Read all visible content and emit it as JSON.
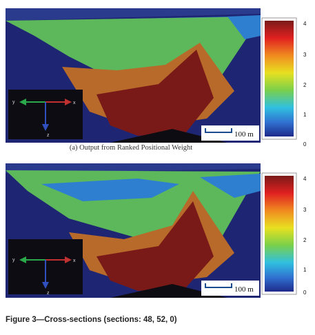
{
  "panels": [
    {
      "id": "a",
      "scale_bar_label": "100 m",
      "colorbar_ticks": [
        "4",
        "3",
        "2",
        "1",
        "0"
      ],
      "axis_labels": {
        "x_left": "y",
        "x_right": "x",
        "down": "z"
      },
      "caption": "(a) Output from Ranked Positional Weight"
    },
    {
      "id": "b",
      "scale_bar_label": "100 m",
      "colorbar_ticks": [
        "4",
        "3",
        "2",
        "1",
        "0"
      ],
      "axis_labels": {
        "x_left": "y",
        "x_right": "x",
        "down": "z"
      }
    }
  ],
  "colors": {
    "background": "#1e2573",
    "level_0": "#2a3a8c",
    "level_1": "#2f7fd0",
    "level_2": "#5cb85a",
    "level_3": "#b86a2a",
    "level_4": "#7a1a18",
    "sky_dark": "#0c0c12"
  },
  "figure_caption": "Figure 3—Cross-sections (sections: 48, 52, 0)"
}
